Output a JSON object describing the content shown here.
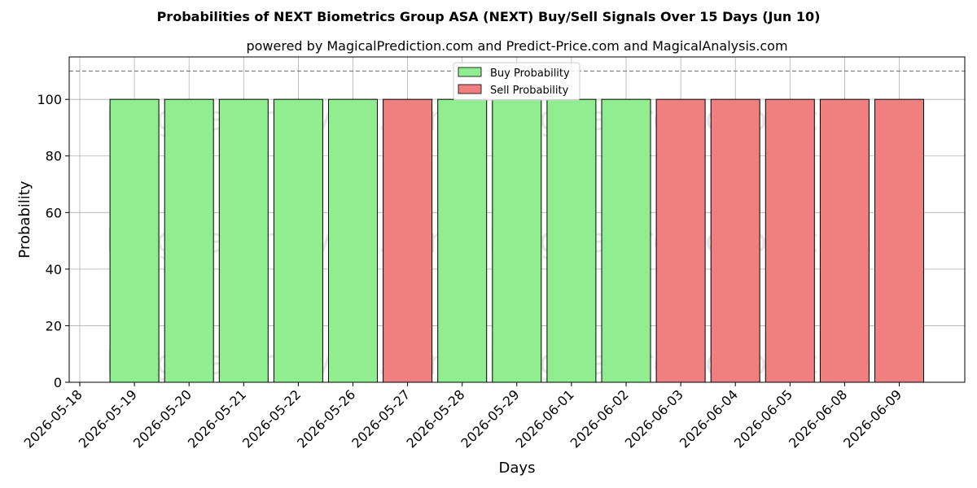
{
  "chart_data": {
    "type": "bar",
    "title": "Probabilities of NEXT Biometrics Group ASA (NEXT) Buy/Sell Signals Over 15 Days (Jun 10)",
    "subtitle": "powered by MagicalPrediction.com and Predict-Price.com and MagicalAnalysis.com",
    "xlabel": "Days",
    "ylabel": "Probability",
    "ylim": [
      0,
      115
    ],
    "yticks": [
      0,
      20,
      40,
      60,
      80,
      100
    ],
    "xtick_labels": [
      "2026-05-18",
      "2026-05-19",
      "2026-05-20",
      "2026-05-21",
      "2026-05-22",
      "2026-05-26",
      "2026-05-27",
      "2026-05-28",
      "2026-05-29",
      "2026-06-01",
      "2026-06-02",
      "2026-06-03",
      "2026-06-04",
      "2026-06-05",
      "2026-06-08",
      "2026-06-09"
    ],
    "reference_line": 110,
    "grid": true,
    "legend": {
      "placement": "top-center",
      "entries": [
        {
          "name": "Buy Probability",
          "color": "#90ee90"
        },
        {
          "name": "Sell Probability",
          "color": "#f08080"
        }
      ]
    },
    "bars": [
      {
        "date": "2026-05-19",
        "signal": "Buy",
        "value": 100
      },
      {
        "date": "2026-05-20",
        "signal": "Buy",
        "value": 100
      },
      {
        "date": "2026-05-21",
        "signal": "Buy",
        "value": 100
      },
      {
        "date": "2026-05-22",
        "signal": "Buy",
        "value": 100
      },
      {
        "date": "2026-05-26",
        "signal": "Buy",
        "value": 100
      },
      {
        "date": "2026-05-27",
        "signal": "Sell",
        "value": 100
      },
      {
        "date": "2026-05-28",
        "signal": "Buy",
        "value": 100
      },
      {
        "date": "2026-05-29",
        "signal": "Buy",
        "value": 100
      },
      {
        "date": "2026-06-01",
        "signal": "Buy",
        "value": 100
      },
      {
        "date": "2026-06-02",
        "signal": "Buy",
        "value": 100
      },
      {
        "date": "2026-06-03",
        "signal": "Sell",
        "value": 100
      },
      {
        "date": "2026-06-04",
        "signal": "Sell",
        "value": 100
      },
      {
        "date": "2026-06-05",
        "signal": "Sell",
        "value": 100
      },
      {
        "date": "2026-06-08",
        "signal": "Sell",
        "value": 100
      },
      {
        "date": "2026-06-09",
        "signal": "Sell",
        "value": 100
      }
    ],
    "watermarks": [
      "MagicalAnalysis.com",
      "MagicalPrediction.com"
    ]
  }
}
